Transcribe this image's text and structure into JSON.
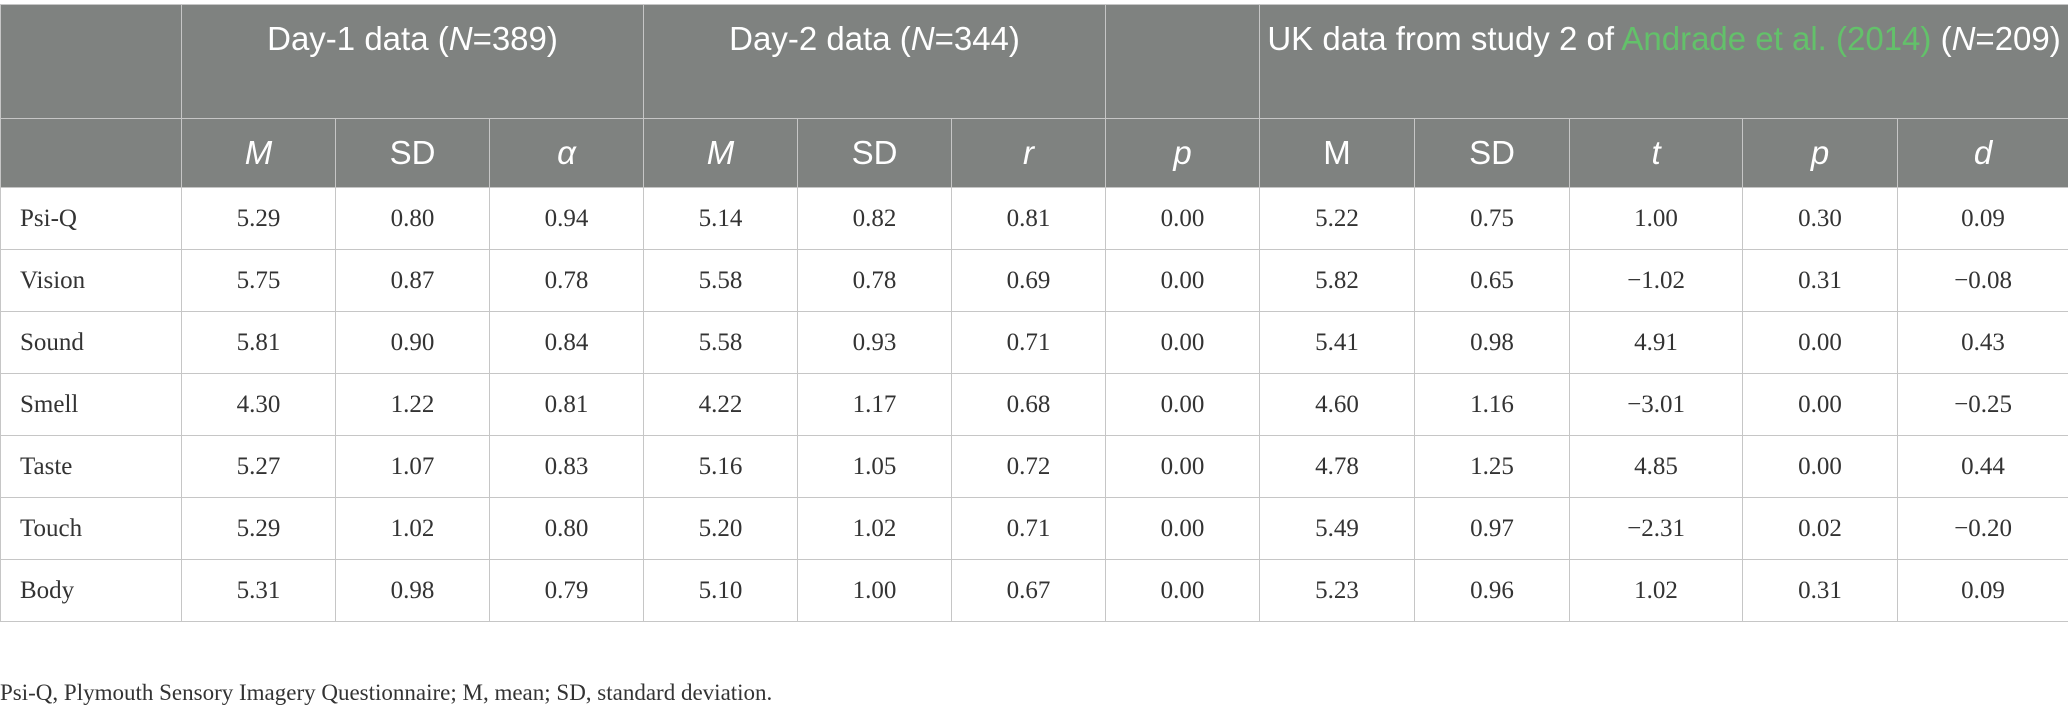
{
  "table": {
    "groups": {
      "day1": {
        "pre": "Day-1 data (",
        "n": "N",
        "post": "=389)"
      },
      "day2": {
        "pre": "Day-2 data (",
        "n": "N",
        "post": "=344)"
      },
      "uk": {
        "pre": "UK data from study 2 of ",
        "link": "Andrade et al. (2014)",
        "mid": " (",
        "n": "N",
        "post": "=209)"
      }
    },
    "subheaders": [
      "M",
      "SD",
      "α",
      "M",
      "SD",
      "r",
      "p",
      "M",
      "SD",
      "t",
      "p",
      "d"
    ],
    "rows": [
      {
        "label": "Psi-Q",
        "values": [
          "5.29",
          "0.80",
          "0.94",
          "5.14",
          "0.82",
          "0.81",
          "0.00",
          "5.22",
          "0.75",
          "1.00",
          "0.30",
          "0.09"
        ]
      },
      {
        "label": "Vision",
        "values": [
          "5.75",
          "0.87",
          "0.78",
          "5.58",
          "0.78",
          "0.69",
          "0.00",
          "5.82",
          "0.65",
          "−1.02",
          "0.31",
          "−0.08"
        ]
      },
      {
        "label": "Sound",
        "values": [
          "5.81",
          "0.90",
          "0.84",
          "5.58",
          "0.93",
          "0.71",
          "0.00",
          "5.41",
          "0.98",
          "4.91",
          "0.00",
          "0.43"
        ]
      },
      {
        "label": "Smell",
        "values": [
          "4.30",
          "1.22",
          "0.81",
          "4.22",
          "1.17",
          "0.68",
          "0.00",
          "4.60",
          "1.16",
          "−3.01",
          "0.00",
          "−0.25"
        ]
      },
      {
        "label": "Taste",
        "values": [
          "5.27",
          "1.07",
          "0.83",
          "5.16",
          "1.05",
          "0.72",
          "0.00",
          "4.78",
          "1.25",
          "4.85",
          "0.00",
          "0.44"
        ]
      },
      {
        "label": "Touch",
        "values": [
          "5.29",
          "1.02",
          "0.80",
          "5.20",
          "1.02",
          "0.71",
          "0.00",
          "5.49",
          "0.97",
          "−2.31",
          "0.02",
          "−0.20"
        ]
      },
      {
        "label": "Body",
        "values": [
          "5.31",
          "0.98",
          "0.79",
          "5.10",
          "1.00",
          "0.67",
          "0.00",
          "5.23",
          "0.96",
          "1.02",
          "0.31",
          "0.09"
        ]
      }
    ]
  },
  "footnote": "Psi-Q, Plymouth Sensory Imagery Questionnaire; M, mean; SD, standard deviation."
}
